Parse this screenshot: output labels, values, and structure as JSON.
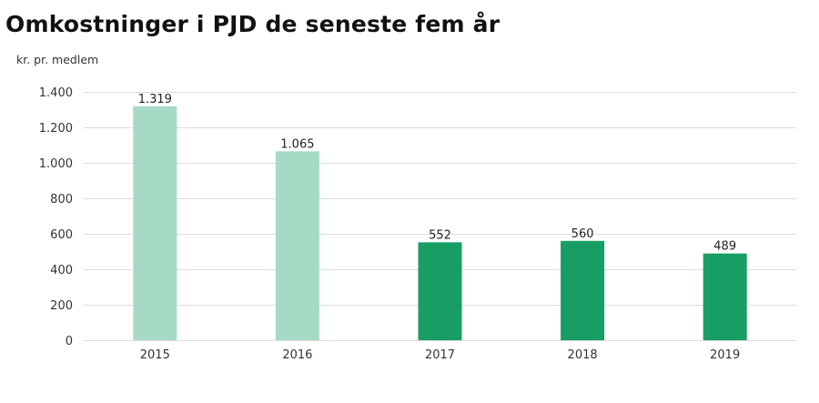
{
  "chart_data": {
    "type": "bar",
    "title": "Omkostninger i PJD de seneste fem år",
    "ylabel": "kr. pr. medlem",
    "xlabel": "",
    "categories": [
      "2015",
      "2016",
      "2017",
      "2018",
      "2019"
    ],
    "values": [
      1319,
      1065,
      552,
      560,
      489
    ],
    "value_labels": [
      "1.319",
      "1.065",
      "552",
      "560",
      "489"
    ],
    "ylim": [
      0,
      1400
    ],
    "yticks": [
      0,
      200,
      400,
      600,
      800,
      1000,
      1200,
      1400
    ],
    "ytick_labels": [
      "0",
      "200",
      "400",
      "600",
      "800",
      "1.000",
      "1.200",
      "1.400"
    ],
    "grid": true,
    "bar_colors": [
      "#a6dac4",
      "#a6dac4",
      "#189e64",
      "#189e64",
      "#189e64"
    ]
  }
}
